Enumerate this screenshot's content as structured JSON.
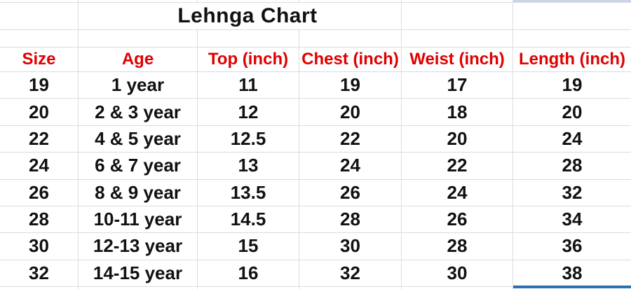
{
  "sheet": {
    "title": "Lehnga Chart",
    "columns": [
      "Size",
      "Age",
      "Top (inch)",
      "Chest (inch)",
      "Weist (inch)",
      "Length (inch)"
    ],
    "rows": [
      [
        "19",
        "1 year",
        "11",
        "19",
        "17",
        "19"
      ],
      [
        "20",
        "2 & 3 year",
        "12",
        "20",
        "18",
        "20"
      ],
      [
        "22",
        "4 & 5 year",
        "12.5",
        "22",
        "20",
        "24"
      ],
      [
        "24",
        "6 & 7 year",
        "13",
        "24",
        "22",
        "28"
      ],
      [
        "26",
        "8 & 9 year",
        "13.5",
        "26",
        "24",
        "32"
      ],
      [
        "28",
        "10-11 year",
        "14.5",
        "28",
        "26",
        "34"
      ],
      [
        "30",
        "12-13 year",
        "15",
        "30",
        "28",
        "36"
      ],
      [
        "32",
        "14-15 year",
        "16",
        "32",
        "30",
        "38"
      ]
    ]
  },
  "colors": {
    "header_text": "#e00000",
    "body_text": "#111111",
    "gridline": "#d9dce1",
    "selection_border": "#2e70b2",
    "top_strip_fill": "#cad5e9"
  }
}
